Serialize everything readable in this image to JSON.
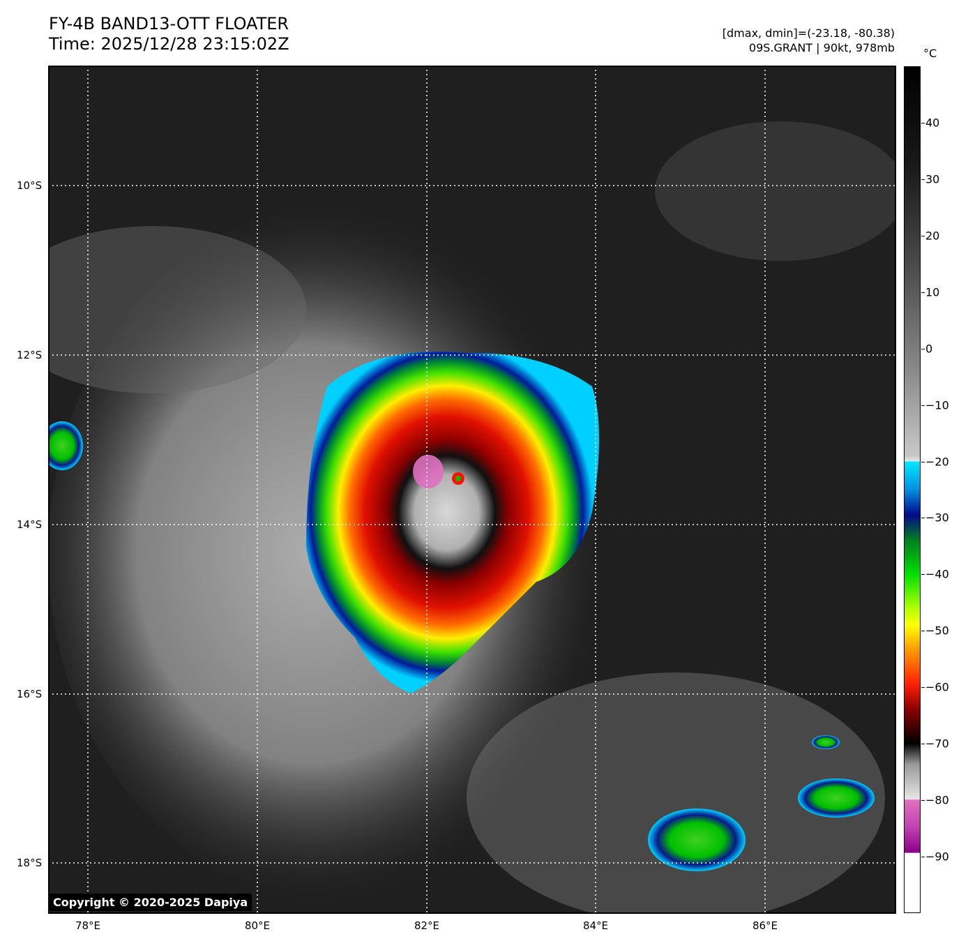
{
  "header": {
    "title_line1": "FY-4B BAND13-OTT FLOATER",
    "title_line2": "Time: 2025/12/28 23:15:02Z",
    "range_line": "[dmax, dmin]=(-23.18, -80.38)",
    "storm_line": "09S.GRANT | 90kt, 978mb"
  },
  "colorbar": {
    "unit": "°C",
    "ticks": [
      "40",
      "30",
      "20",
      "10",
      "0",
      "−10",
      "−20",
      "−30",
      "−40",
      "−50",
      "−60",
      "−70",
      "−80",
      "−90"
    ],
    "range": [
      -100,
      50
    ]
  },
  "axes": {
    "lon_labels": [
      "78°E",
      "80°E",
      "82°E",
      "84°E",
      "86°E"
    ],
    "lat_labels": [
      "10°S",
      "12°S",
      "14°S",
      "16°S",
      "18°S"
    ]
  },
  "colors": {
    "frame": "#000000",
    "grid": "#ffffff",
    "cold_top_red": "#e01000",
    "cloud_grey": "#9a9a9a",
    "sea_dark": "#1f1f1f",
    "overshoot_pink": "#e070c0"
  },
  "footer": {
    "copyright": "Copyright © 2020-2025 Dapiya"
  }
}
